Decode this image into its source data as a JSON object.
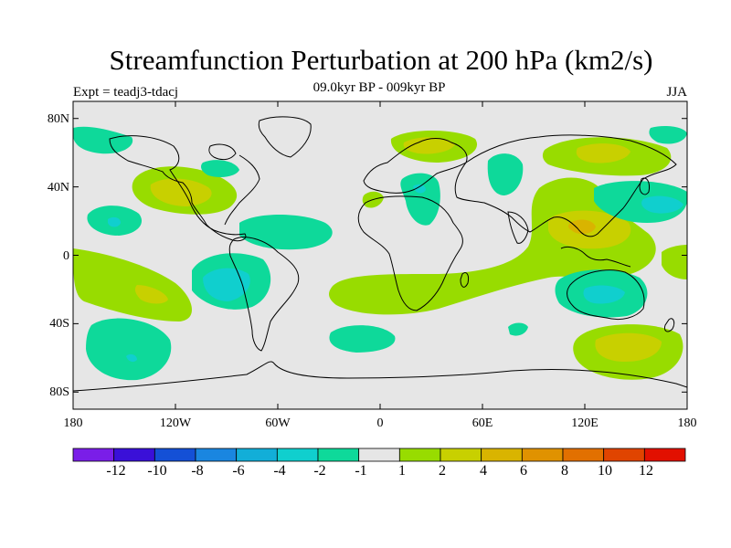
{
  "title": "Streamfunction Perturbation at 200 hPa (km2/s)",
  "subtitle": "09.0kyr BP - 009kyr BP",
  "experiment": "Expt = teadj3-tdacj",
  "season": "JJA",
  "axes": {
    "lat_labels": [
      "80N",
      "40N",
      "0",
      "40S",
      "80S"
    ],
    "lat_values": [
      80,
      40,
      0,
      -40,
      -80
    ],
    "lon_labels": [
      "180",
      "120W",
      "60W",
      "0",
      "60E",
      "120E",
      "180"
    ],
    "lon_values": [
      -180,
      -120,
      -60,
      0,
      60,
      120,
      180
    ]
  },
  "colorbar": {
    "labels": [
      "-12",
      "-10",
      "-8",
      "-6",
      "-4",
      "-2",
      "-1",
      "1",
      "2",
      "4",
      "6",
      "8",
      "10",
      "12"
    ],
    "colors": [
      "#7a1ee8",
      "#3a10d8",
      "#1450d6",
      "#1a86e0",
      "#12aed8",
      "#10cfce",
      "#0ed99a",
      "#e6e6e6",
      "#98dc00",
      "#c8d000",
      "#d9b400",
      "#e09200",
      "#e27000",
      "#e04400",
      "#e21000"
    ]
  },
  "colors": {
    "background_field": "#e6e6e6",
    "coast": "#000000"
  },
  "field_regions": [
    {
      "name": "ne-pacific-positive",
      "level": 1,
      "lon": [
        -150,
        52
      ],
      "lat": [
        -90,
        40
      ]
    },
    {
      "name": "ne-pacific-core",
      "level": 2,
      "lon": [
        -120,
        35
      ],
      "lat": [
        -90,
        40
      ]
    },
    {
      "name": "arctic-west-negative",
      "level": -1,
      "lon": [
        -155,
        75
      ],
      "lat": [
        -175,
        65
      ]
    },
    {
      "name": "greenland-negative",
      "level": -1,
      "lon": [
        -85,
        62
      ],
      "lat": [
        -95,
        55
      ]
    },
    {
      "name": "canada-negative",
      "level": -1,
      "lon": [
        -80,
        45
      ],
      "lat": [
        -85,
        40
      ]
    },
    {
      "name": "central-pacific-negative",
      "level": -1,
      "lon": [
        -155,
        22
      ],
      "lat": [
        -170,
        15
      ]
    },
    {
      "name": "tropical-atlantic-negative",
      "level": -1,
      "lon": [
        -45,
        12
      ],
      "lat": [
        -45,
        12
      ]
    },
    {
      "name": "south-america-negative",
      "level": -1,
      "lon": [
        -85,
        -22
      ],
      "lat": [
        -85,
        -22
      ]
    },
    {
      "name": "south-america-core",
      "level": -2,
      "lon": [
        -88,
        -18
      ],
      "lat": [
        -88,
        -18
      ]
    },
    {
      "name": "se-pacific-positive",
      "level": 1,
      "lon": [
        -160,
        -22
      ],
      "lat": [
        -160,
        -22
      ]
    },
    {
      "name": "se-pacific-core",
      "level": 2,
      "lon": [
        -130,
        -25
      ],
      "lat": [
        -130,
        -25
      ]
    },
    {
      "name": "south-pacific-negative",
      "level": -1,
      "lon": [
        -145,
        -58
      ],
      "lat": [
        -145,
        -58
      ]
    },
    {
      "name": "south-atlantic-negative",
      "level": -1,
      "lon": [
        -20,
        -48
      ],
      "lat": [
        -20,
        -48
      ]
    },
    {
      "name": "arctic-europe-positive",
      "level": 1,
      "lon": [
        20,
        72
      ],
      "lat": [
        20,
        72
      ]
    },
    {
      "name": "scandinavia-core",
      "level": 2,
      "lon": [
        25,
        75
      ],
      "lat": [
        25,
        75
      ]
    },
    {
      "name": "europe-negative",
      "level": -1,
      "lon": [
        20,
        42
      ],
      "lat": [
        20,
        42
      ]
    },
    {
      "name": "siberia-negative",
      "level": -1,
      "lon": [
        80,
        50
      ],
      "lat": [
        80,
        50
      ]
    },
    {
      "name": "ural-positive",
      "level": 1,
      "lon": [
        130,
        62
      ],
      "lat": [
        130,
        62
      ]
    },
    {
      "name": "southern-band-positive",
      "level": 1,
      "lon": [
        30,
        -20
      ],
      "lat": [
        30,
        -20
      ]
    },
    {
      "name": "asia-positive-band",
      "level": 1,
      "lon": [
        110,
        25
      ],
      "lat": [
        110,
        25
      ]
    },
    {
      "name": "asia-core",
      "level": 2,
      "lon": [
        120,
        18
      ],
      "lat": [
        120,
        18
      ]
    },
    {
      "name": "japan-negative",
      "level": -1,
      "lon": [
        160,
        35
      ],
      "lat": [
        160,
        35
      ]
    },
    {
      "name": "australia-negative",
      "level": -1,
      "lon": [
        125,
        -25
      ],
      "lat": [
        125,
        -25
      ]
    },
    {
      "name": "indian-ocean-negative",
      "level": -1,
      "lon": [
        55,
        -40
      ],
      "lat": [
        55,
        -40
      ]
    },
    {
      "name": "southern-ocean-positive",
      "level": 1,
      "lon": [
        150,
        -52
      ],
      "lat": [
        150,
        -52
      ]
    },
    {
      "name": "southern-ocean-core",
      "level": 2,
      "lon": [
        150,
        -52
      ],
      "lat": [
        150,
        -52
      ]
    },
    {
      "name": "east-pacific-positive",
      "level": 1,
      "lon": [
        175,
        -5
      ],
      "lat": [
        175,
        -5
      ]
    }
  ]
}
